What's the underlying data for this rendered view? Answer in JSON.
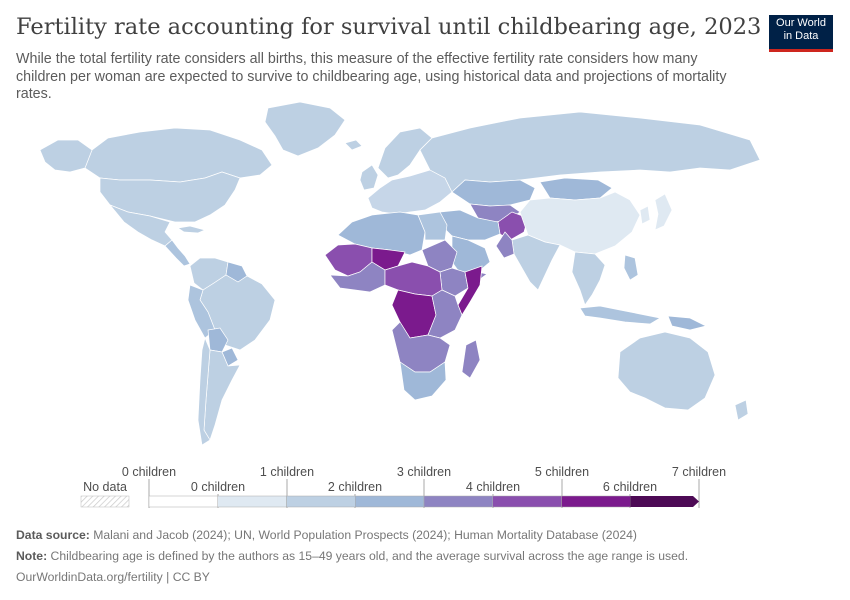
{
  "header": {
    "title": "Fertility rate accounting for survival until childbearing age, 2023",
    "subtitle": "While the total fertility rate considers all births, this measure of the effective fertility rate considers how many children per woman are expected to survive to childbearing age, using historical data and projections of mortality rates.",
    "logo_line1": "Our World",
    "logo_line2": "in Data"
  },
  "legend": {
    "no_data_label": "No data",
    "upper_labels": [
      "0 children",
      "1 children",
      "3 children",
      "5 children",
      "7 children"
    ],
    "lower_labels": [
      "0 children",
      "2 children",
      "4 children",
      "6 children"
    ],
    "bins": [
      {
        "color": "#ffffff"
      },
      {
        "color": "#dfe9f2"
      },
      {
        "color": "#bdd0e3"
      },
      {
        "color": "#9fb8d8"
      },
      {
        "color": "#8e84c2"
      },
      {
        "color": "#8a4fae"
      },
      {
        "color": "#7b1a8d"
      },
      {
        "color": "#4d0a55"
      }
    ]
  },
  "footer": {
    "source_label": "Data source:",
    "source_text": "Malani and Jacob (2024); UN, World Population Prospects (2024); Human Mortality Database (2024)",
    "note_label": "Note:",
    "note_text": "Childbearing age is defined by the authors as 15–49 years old, and the average survival across the age range is used.",
    "link_text": "OurWorldinData.org/fertility | CC BY"
  },
  "colors": {
    "ocean": "#ffffff",
    "border": "#ffffff",
    "title": "#404040",
    "logo_bg": "#002147",
    "logo_accent": "#ce261e"
  },
  "map": {
    "regions": [
      {
        "name": "Canada",
        "fill": "#bdd0e3"
      },
      {
        "name": "Alaska",
        "fill": "#bdd0e3"
      },
      {
        "name": "Greenland",
        "fill": "#bdd0e3"
      },
      {
        "name": "United States",
        "fill": "#bdd0e3"
      },
      {
        "name": "Mexico",
        "fill": "#bdd0e3"
      },
      {
        "name": "Central America",
        "fill": "#adc4de"
      },
      {
        "name": "Cuba",
        "fill": "#bdd0e3"
      },
      {
        "name": "Colombia and Venezuela",
        "fill": "#bdd0e3"
      },
      {
        "name": "Guyana region",
        "fill": "#9fb8d8"
      },
      {
        "name": "Brazil",
        "fill": "#bdd0e3"
      },
      {
        "name": "Peru and Ecuador",
        "fill": "#adc4de"
      },
      {
        "name": "Bolivia",
        "fill": "#9fb8d8"
      },
      {
        "name": "Paraguay",
        "fill": "#9fb8d8"
      },
      {
        "name": "Argentina and Uruguay",
        "fill": "#bdd0e3"
      },
      {
        "name": "Chile",
        "fill": "#bdd0e3"
      },
      {
        "name": "Iceland",
        "fill": "#bdd0e3"
      },
      {
        "name": "Scandinavia",
        "fill": "#bdd0e3"
      },
      {
        "name": "United Kingdom and Ireland",
        "fill": "#bdd0e3"
      },
      {
        "name": "Europe",
        "fill": "#c6d6e8"
      },
      {
        "name": "Russia",
        "fill": "#bdd0e3"
      },
      {
        "name": "Kazakhstan",
        "fill": "#9fb8d8"
      },
      {
        "name": "Central Asia",
        "fill": "#8e84c2"
      },
      {
        "name": "Afghanistan",
        "fill": "#8a4fae"
      },
      {
        "name": "Middle East",
        "fill": "#9fb8d8"
      },
      {
        "name": "Arabian Peninsula",
        "fill": "#9fb8d8"
      },
      {
        "name": "Yemen",
        "fill": "#8e84c2"
      },
      {
        "name": "Mongolia",
        "fill": "#9fb8d8"
      },
      {
        "name": "China",
        "fill": "#dfe9f2"
      },
      {
        "name": "Korea",
        "fill": "#dfe9f2"
      },
      {
        "name": "Japan",
        "fill": "#dfe9f2"
      },
      {
        "name": "India",
        "fill": "#bdd0e3"
      },
      {
        "name": "Pakistan",
        "fill": "#8e84c2"
      },
      {
        "name": "Southeast Asia",
        "fill": "#bdd0e3"
      },
      {
        "name": "Indonesia",
        "fill": "#adc4de"
      },
      {
        "name": "Philippines",
        "fill": "#adc4de"
      },
      {
        "name": "Papua New Guinea",
        "fill": "#9fb8d8"
      },
      {
        "name": "Australia",
        "fill": "#bdd0e3"
      },
      {
        "name": "New Zealand",
        "fill": "#bdd0e3"
      },
      {
        "name": "North Africa",
        "fill": "#9fb8d8"
      },
      {
        "name": "Egypt",
        "fill": "#adc4de"
      },
      {
        "name": "Sudan",
        "fill": "#8e84c2"
      },
      {
        "name": "Sahel",
        "fill": "#8a4fae"
      },
      {
        "name": "Niger",
        "fill": "#7b1a8d"
      },
      {
        "name": "West Africa",
        "fill": "#8e84c2"
      },
      {
        "name": "Ethiopia",
        "fill": "#8e84c2"
      },
      {
        "name": "Somalia",
        "fill": "#7b1a8d"
      },
      {
        "name": "Central Africa",
        "fill": "#8a4fae"
      },
      {
        "name": "DR Congo",
        "fill": "#7b1a8d"
      },
      {
        "name": "East Africa",
        "fill": "#8e84c2"
      },
      {
        "name": "Southern Africa",
        "fill": "#8e84c2"
      },
      {
        "name": "South Africa",
        "fill": "#9fb8d8"
      },
      {
        "name": "Madagascar",
        "fill": "#8e84c2"
      }
    ]
  }
}
